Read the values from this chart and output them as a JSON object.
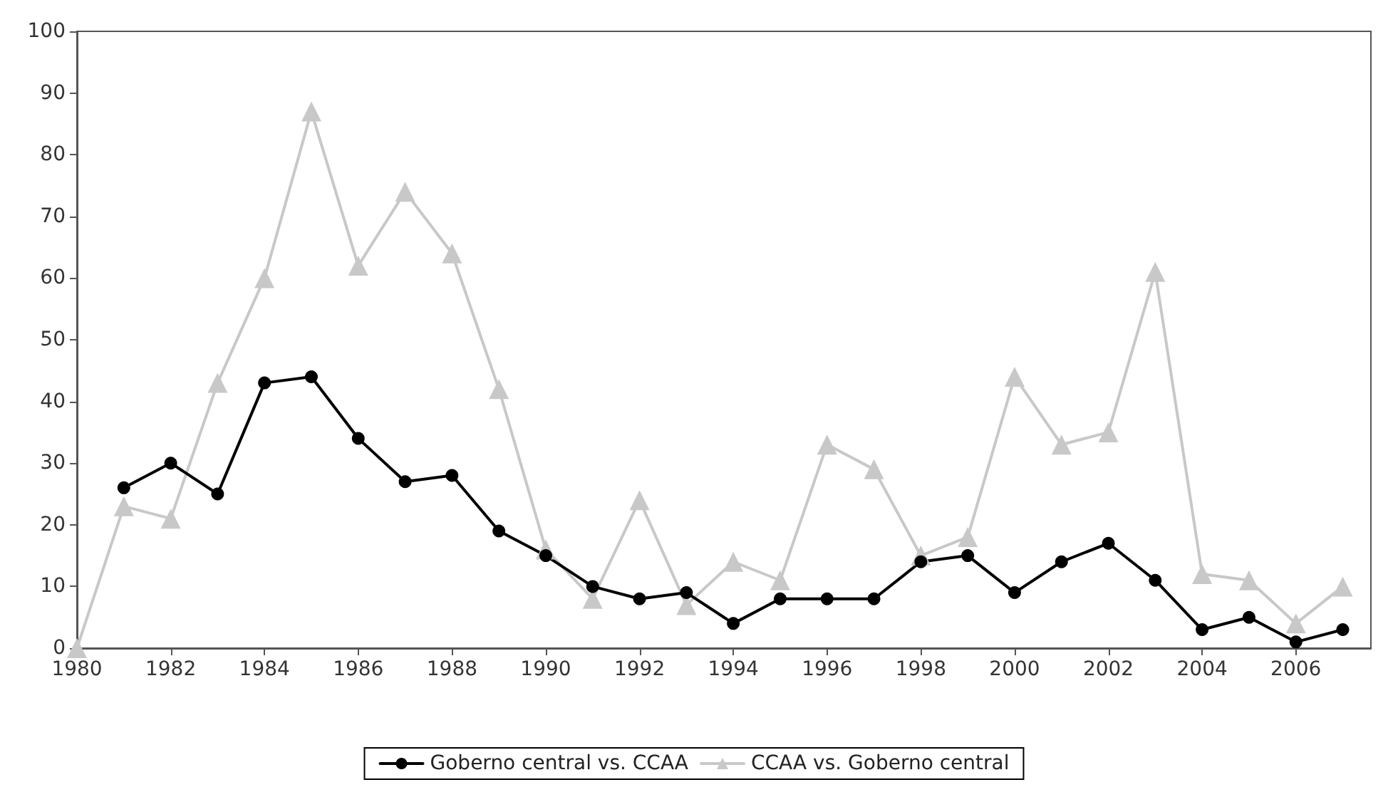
{
  "chart_data": {
    "type": "line",
    "x": [
      1980,
      1981,
      1982,
      1983,
      1984,
      1985,
      1986,
      1987,
      1988,
      1989,
      1990,
      1991,
      1992,
      1993,
      1994,
      1995,
      1996,
      1997,
      1998,
      1999,
      2000,
      2001,
      2002,
      2003,
      2004,
      2005,
      2006,
      2007
    ],
    "series": [
      {
        "name": "Goberno central vs. CCAA",
        "color": "#000000",
        "marker": "circle",
        "values": [
          null,
          26,
          30,
          25,
          43,
          44,
          34,
          27,
          28,
          19,
          15,
          10,
          8,
          9,
          4,
          8,
          8,
          8,
          14,
          15,
          9,
          14,
          17,
          11,
          3,
          5,
          1,
          3
        ]
      },
      {
        "name": "CCAA vs. Goberno central",
        "color": "#c8c8c8",
        "marker": "triangle",
        "values": [
          0,
          23,
          21,
          43,
          60,
          87,
          62,
          74,
          64,
          42,
          16,
          8,
          24,
          7,
          14,
          11,
          33,
          29,
          15,
          18,
          44,
          33,
          35,
          61,
          12,
          11,
          4,
          10
        ]
      }
    ],
    "xlim": [
      1980,
      2007.6
    ],
    "xticks": [
      1980,
      1982,
      1984,
      1986,
      1988,
      1990,
      1992,
      1994,
      1996,
      1998,
      2000,
      2002,
      2004,
      2006
    ],
    "ylim": [
      0,
      100
    ],
    "yticks": [
      0,
      10,
      20,
      30,
      40,
      50,
      60,
      70,
      80,
      90,
      100
    ],
    "grid": false,
    "legend": "bottom",
    "line_style": "solid"
  }
}
